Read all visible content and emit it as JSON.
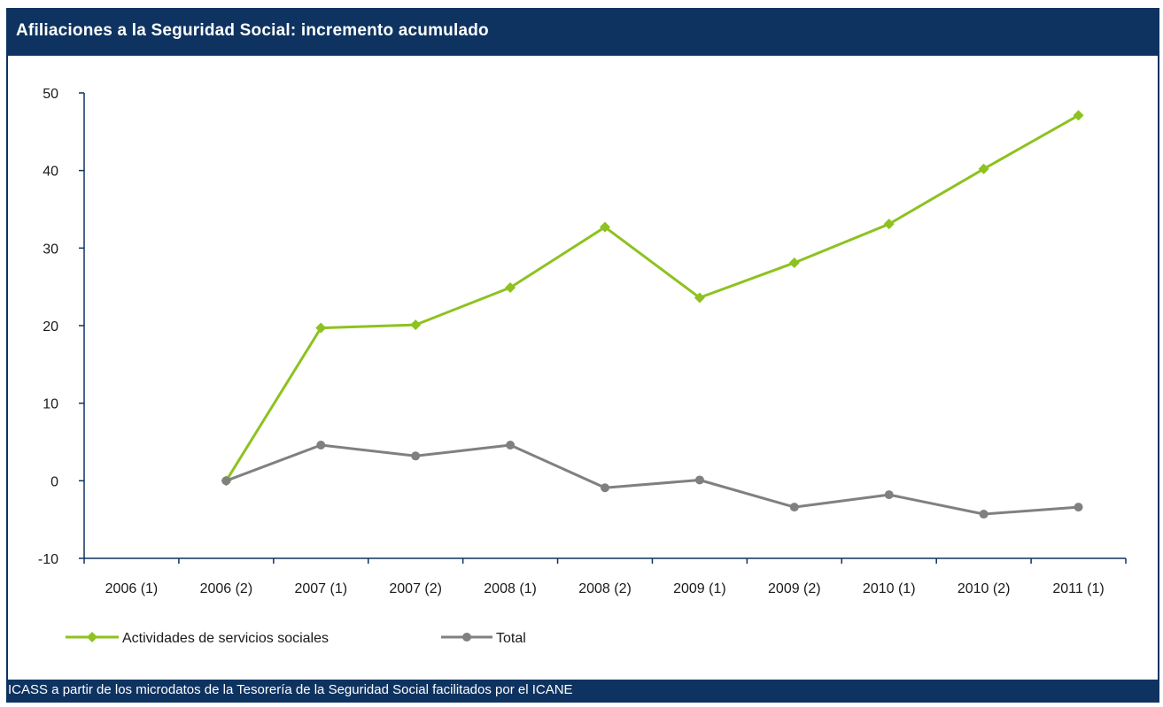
{
  "title": "Afiliaciones a la Seguridad Social: incremento acumulado",
  "source": "ICASS a partir de los microdatos de la Tesorería de la Seguridad Social facilitados por el ICANE",
  "colors": {
    "header": "#0e3360",
    "series1": "#8dc21f",
    "series2": "#808080",
    "axis": "#0e3360"
  },
  "chart_data": {
    "type": "line",
    "categories": [
      "2006 (1)",
      "2006 (2)",
      "2007 (1)",
      "2007 (2)",
      "2008 (1)",
      "2008 (2)",
      "2009 (1)",
      "2009 (2)",
      "2010 (1)",
      "2010 (2)",
      "2011 (1)"
    ],
    "ylim": [
      -10,
      50
    ],
    "yticks": [
      "-10",
      "0",
      "10",
      "20",
      "30",
      "40",
      "50"
    ],
    "legend_position": "bottom-left",
    "grid": false,
    "series": [
      {
        "name": "Actividades de servicios sociales",
        "marker": "diamond",
        "values": [
          null,
          0,
          19.7,
          20.1,
          24.9,
          32.7,
          23.6,
          28.1,
          33.1,
          40.2,
          47.1
        ]
      },
      {
        "name": "Total",
        "marker": "circle",
        "values": [
          null,
          0,
          4.6,
          3.2,
          4.6,
          -0.9,
          0.1,
          -3.4,
          -1.8,
          -4.3,
          -3.4
        ]
      }
    ]
  }
}
